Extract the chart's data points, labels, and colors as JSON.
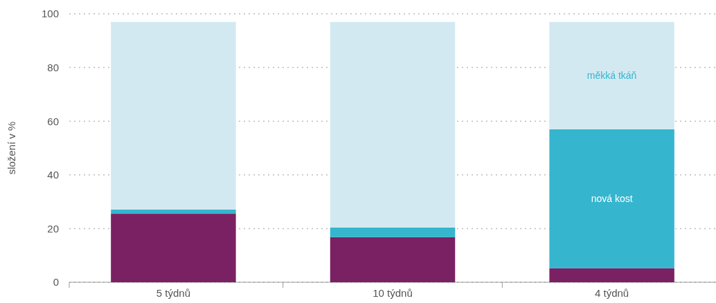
{
  "chart_data": {
    "type": "bar",
    "stacked": true,
    "ylabel": "složení v %",
    "categories": [
      "5 týdnů",
      "10 týdnů",
      "4 týdnů"
    ],
    "series": [
      {
        "color": "#7a2163",
        "values": [
          25.5,
          16.8,
          5.2
        ]
      },
      {
        "name": "nová kost",
        "color": "#36b5cf",
        "values": [
          1.6,
          3.6,
          51.8
        ]
      },
      {
        "name": "měkká tkáň",
        "color": "#d3e9f1",
        "values": [
          69.9,
          76.6,
          40
        ]
      }
    ],
    "ylim": [
      0,
      100
    ],
    "yticks": [
      0,
      20,
      40,
      60,
      80,
      100
    ],
    "grid": "y"
  }
}
